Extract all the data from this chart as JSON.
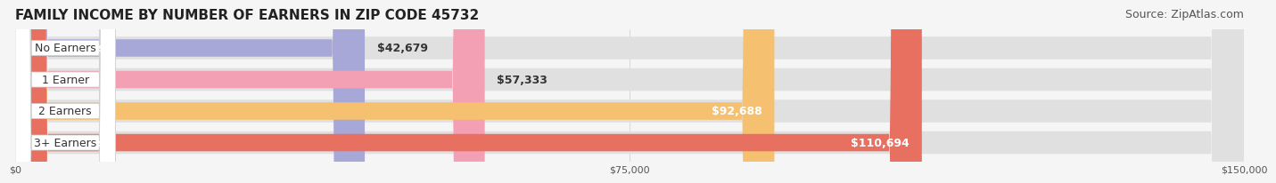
{
  "title": "FAMILY INCOME BY NUMBER OF EARNERS IN ZIP CODE 45732",
  "source": "Source: ZipAtlas.com",
  "categories": [
    "No Earners",
    "1 Earner",
    "2 Earners",
    "3+ Earners"
  ],
  "values": [
    42679,
    57333,
    92688,
    110694
  ],
  "bar_colors": [
    "#a8a8d8",
    "#f4a0b4",
    "#f5c070",
    "#e87060"
  ],
  "bar_bg_color": "#e8e8e8",
  "background_color": "#f5f5f5",
  "xlim": [
    0,
    150000
  ],
  "xticks": [
    0,
    75000,
    150000
  ],
  "xtick_labels": [
    "$0",
    "$75,000",
    "$150,000"
  ],
  "value_labels": [
    "$42,679",
    "$57,333",
    "$92,688",
    "$110,694"
  ],
  "title_fontsize": 11,
  "source_fontsize": 9,
  "bar_label_fontsize": 9,
  "value_label_fontsize": 9,
  "category_fontsize": 9
}
